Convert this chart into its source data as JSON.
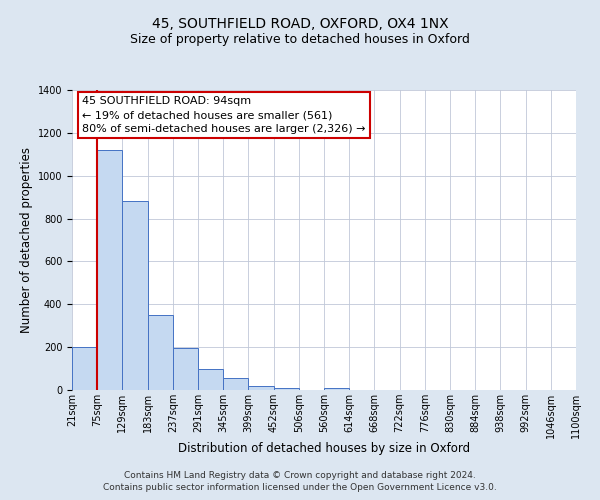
{
  "title": "45, SOUTHFIELD ROAD, OXFORD, OX4 1NX",
  "subtitle": "Size of property relative to detached houses in Oxford",
  "bar_values": [
    200,
    1120,
    880,
    350,
    195,
    100,
    55,
    20,
    10,
    0,
    10,
    0,
    0,
    0,
    0,
    0,
    0,
    0,
    0,
    0
  ],
  "bin_labels": [
    "21sqm",
    "75sqm",
    "129sqm",
    "183sqm",
    "237sqm",
    "291sqm",
    "345sqm",
    "399sqm",
    "452sqm",
    "506sqm",
    "560sqm",
    "614sqm",
    "668sqm",
    "722sqm",
    "776sqm",
    "830sqm",
    "884sqm",
    "938sqm",
    "992sqm",
    "1046sqm",
    "1100sqm"
  ],
  "bar_color": "#c5d9f1",
  "bar_edge_color": "#4472c4",
  "vline_color": "#cc0000",
  "annotation_text": "45 SOUTHFIELD ROAD: 94sqm\n← 19% of detached houses are smaller (561)\n80% of semi-detached houses are larger (2,326) →",
  "annotation_box_color": "#ffffff",
  "annotation_box_edge": "#cc0000",
  "xlabel": "Distribution of detached houses by size in Oxford",
  "ylabel": "Number of detached properties",
  "ylim": [
    0,
    1400
  ],
  "yticks": [
    0,
    200,
    400,
    600,
    800,
    1000,
    1200,
    1400
  ],
  "footer_line1": "Contains HM Land Registry data © Crown copyright and database right 2024.",
  "footer_line2": "Contains public sector information licensed under the Open Government Licence v3.0.",
  "bg_color": "#dce6f1",
  "plot_bg_color": "#ffffff",
  "grid_color": "#c0c8d8",
  "title_fontsize": 10,
  "subtitle_fontsize": 9,
  "axis_label_fontsize": 8.5,
  "tick_fontsize": 7,
  "annotation_fontsize": 8,
  "footer_fontsize": 6.5
}
